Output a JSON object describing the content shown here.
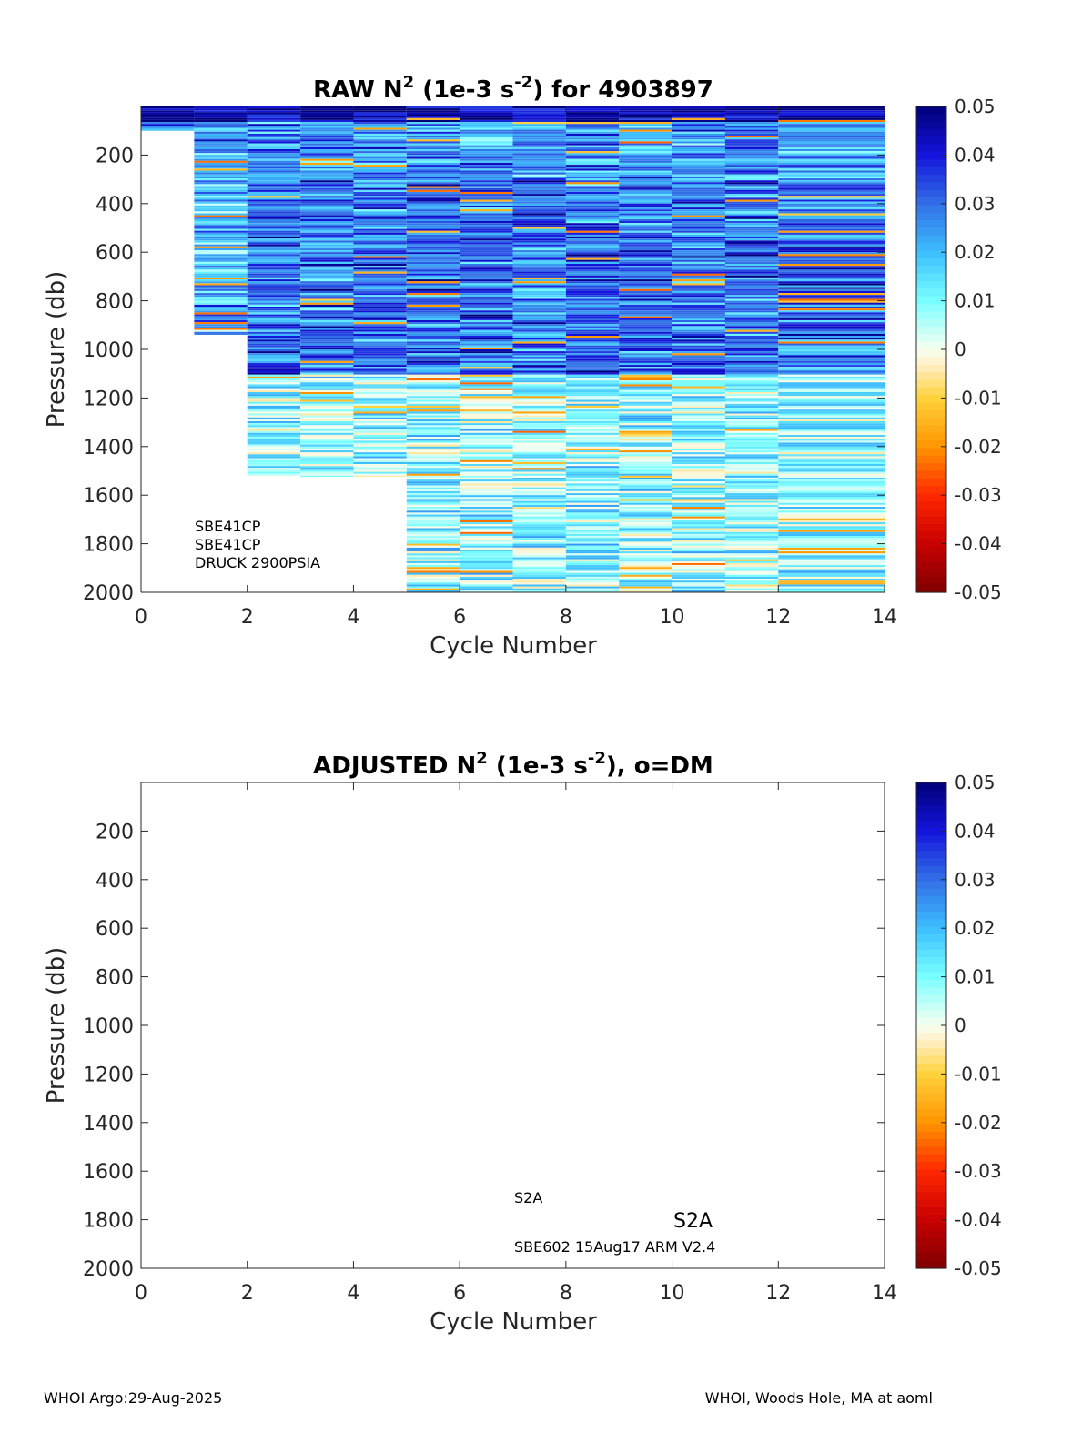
{
  "chart_data": [
    {
      "type": "heatmap",
      "title_main": "RAW N",
      "title_sup1": "2",
      "title_mid": " (1e-3 s",
      "title_sup2": "-2",
      "title_end": ") for 4903897",
      "xlabel": "Cycle Number",
      "ylabel": "Pressure (db)",
      "xlim": [
        0,
        14
      ],
      "ylim": [
        0,
        2000
      ],
      "y_reversed": true,
      "xticks": [
        "0",
        "2",
        "4",
        "6",
        "8",
        "10",
        "12",
        "14"
      ],
      "yticks": [
        "200",
        "400",
        "600",
        "800",
        "1000",
        "1200",
        "1400",
        "1600",
        "1800",
        "2000"
      ],
      "colorbar": {
        "range": [
          -0.05,
          0.05
        ],
        "ticks": [
          "0.05",
          "0.04",
          "0.03",
          "0.02",
          "0.01",
          "0",
          "-0.01",
          "-0.02",
          "-0.03",
          "-0.04",
          "-0.05"
        ]
      },
      "columns": [
        {
          "x0": 0,
          "x1": 1,
          "pmin": 0,
          "pmax": 100
        },
        {
          "x0": 1,
          "x1": 2,
          "pmin": 0,
          "pmax": 940
        },
        {
          "x0": 2,
          "x1": 3,
          "pmin": 0,
          "pmax": 1520
        },
        {
          "x0": 3,
          "x1": 4,
          "pmin": 0,
          "pmax": 1525
        },
        {
          "x0": 4,
          "x1": 5,
          "pmin": 0,
          "pmax": 1525
        },
        {
          "x0": 5,
          "x1": 6,
          "pmin": 0,
          "pmax": 2000
        },
        {
          "x0": 6,
          "x1": 7,
          "pmin": 0,
          "pmax": 2000
        },
        {
          "x0": 7,
          "x1": 8,
          "pmin": 0,
          "pmax": 2000
        },
        {
          "x0": 8,
          "x1": 9,
          "pmin": 0,
          "pmax": 2000
        },
        {
          "x0": 9,
          "x1": 10,
          "pmin": 0,
          "pmax": 2000
        },
        {
          "x0": 10,
          "x1": 11,
          "pmin": 0,
          "pmax": 2000
        },
        {
          "x0": 11,
          "x1": 12,
          "pmin": 0,
          "pmax": 2000
        },
        {
          "x0": 12,
          "x1": 14,
          "pmin": 0,
          "pmax": 2000
        }
      ],
      "annotations": [
        "SBE41CP",
        "SBE41CP",
        "DRUCK 2900PSIA"
      ]
    },
    {
      "type": "heatmap",
      "title_main": "ADJUSTED N",
      "title_sup1": "2",
      "title_mid": " (1e-3 s",
      "title_sup2": "-2",
      "title_end": "), o=DM",
      "xlabel": "Cycle Number",
      "ylabel": "Pressure (db)",
      "xlim": [
        0,
        14
      ],
      "ylim": [
        0,
        2000
      ],
      "y_reversed": true,
      "xticks": [
        "0",
        "2",
        "4",
        "6",
        "8",
        "10",
        "12",
        "14"
      ],
      "yticks": [
        "200",
        "400",
        "600",
        "800",
        "1000",
        "1200",
        "1400",
        "1600",
        "1800",
        "2000"
      ],
      "colorbar": {
        "range": [
          -0.05,
          0.05
        ],
        "ticks": [
          "0.05",
          "0.04",
          "0.03",
          "0.02",
          "0.01",
          "0",
          "-0.01",
          "-0.02",
          "-0.03",
          "-0.04",
          "-0.05"
        ]
      },
      "columns": [],
      "annotations": [
        "S2A",
        "S2A",
        "SBE602 15Aug17 ARM V2.4"
      ]
    }
  ],
  "footer": {
    "left": "WHOI Argo:29-Aug-2025",
    "right": "WHOI, Woods Hole, MA at aoml"
  }
}
